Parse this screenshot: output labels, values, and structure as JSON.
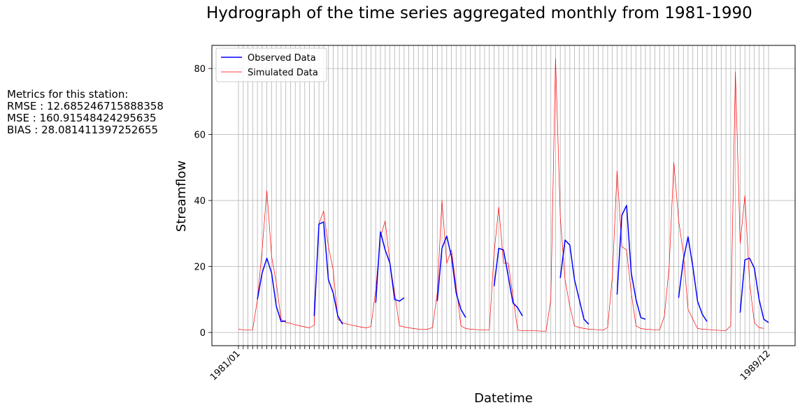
{
  "chart_data": {
    "type": "line",
    "title": "Hydrograph of the time series aggregated monthly from 1981-1990",
    "xlabel": "Datetime",
    "ylabel": "Streamflow",
    "ylim": [
      -4,
      87
    ],
    "yticks": [
      0,
      20,
      40,
      60,
      80
    ],
    "grid": true,
    "legend_position": "top-left",
    "x_start": "1981-01",
    "x_end": "1989-12",
    "x_tick_labels": [
      "1981/01",
      "1989/12"
    ],
    "series": [
      {
        "name": "Observed Data",
        "color": "#0000ff",
        "values": [
          null,
          null,
          null,
          null,
          10,
          18,
          22.5,
          18,
          8,
          3.3,
          3.5,
          null,
          null,
          null,
          null,
          null,
          5,
          32.8,
          33.5,
          16,
          12,
          5,
          2.5,
          null,
          null,
          null,
          null,
          null,
          null,
          9,
          30.5,
          25,
          21,
          10,
          9.5,
          10.5,
          null,
          null,
          null,
          null,
          null,
          null,
          9.5,
          25.5,
          29.2,
          23,
          12,
          7,
          4.5,
          null,
          null,
          null,
          null,
          null,
          14,
          25.5,
          25,
          17,
          9,
          7.5,
          5,
          null,
          null,
          null,
          null,
          null,
          null,
          null,
          16.5,
          28,
          26.5,
          16,
          10,
          4,
          2.5,
          null,
          null,
          null,
          null,
          null,
          11.5,
          35.5,
          38.5,
          18,
          10,
          4.5,
          4,
          null,
          null,
          null,
          null,
          null,
          null,
          10.5,
          22,
          29,
          20,
          9.5,
          5.5,
          3.3,
          null,
          null,
          null,
          null,
          null,
          null,
          6,
          22,
          22.5,
          19.5,
          10,
          4,
          3
        ]
      },
      {
        "name": "Simulated Data",
        "color": "#ff0000",
        "values": [
          1,
          0.8,
          0.8,
          0.8,
          10,
          25,
          43,
          23,
          15,
          4,
          3,
          2.8,
          2.3,
          2,
          1.7,
          1.4,
          2.2,
          33,
          36.8,
          26,
          19,
          4,
          3,
          2.5,
          2.2,
          1.9,
          1.6,
          1.4,
          1.8,
          13,
          29,
          33.8,
          21,
          12,
          2,
          1.7,
          1.4,
          1.2,
          1,
          0.9,
          1,
          1.5,
          12,
          40,
          21,
          25,
          14,
          2,
          1.2,
          1,
          0.9,
          0.8,
          0.8,
          0.8,
          24,
          38,
          21,
          21,
          11,
          0.7,
          0.6,
          0.6,
          0.5,
          0.5,
          0.4,
          0.4,
          10,
          83,
          35,
          16,
          8,
          2,
          1.5,
          1.2,
          1,
          0.9,
          0.8,
          0.7,
          1.5,
          17,
          49,
          26,
          25,
          12,
          2,
          1.2,
          1,
          0.9,
          0.8,
          0.8,
          5,
          20,
          51.5,
          34,
          24,
          7,
          4,
          1.2,
          1,
          0.9,
          0.8,
          0.7,
          0.6,
          0.6,
          2,
          79,
          27,
          41.5,
          15,
          3,
          1.5,
          1.2
        ]
      }
    ]
  },
  "metrics": {
    "heading": "Metrics for this station:",
    "lines": [
      "RMSE : 12.685246715888358",
      "MSE : 160.91548424295635",
      "BIAS : 28.081411397252655"
    ]
  }
}
